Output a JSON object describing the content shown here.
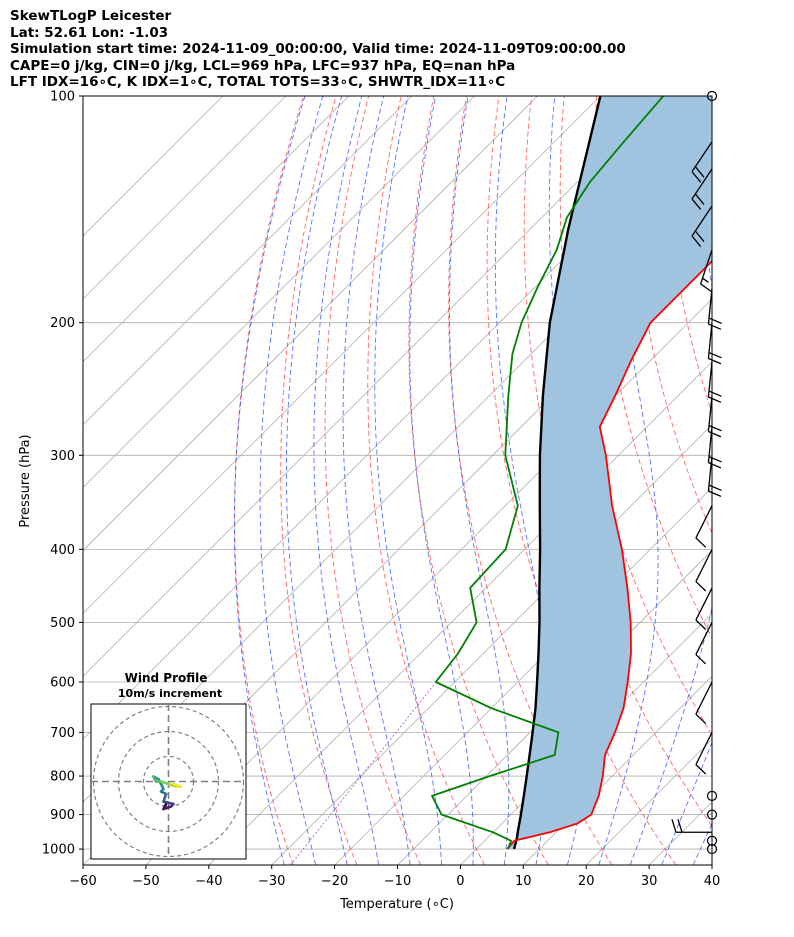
{
  "title_lines": [
    "SkewTLogP Leicester",
    "Lat: 52.61   Lon: -1.03",
    "Simulation start time: 2024-11-09_00:00:00, Valid time: 2024-11-09T09:00:00.00",
    "CAPE=0 j/kg, CIN=0 j/kg, LCL=969 hPa, LFC=937 hPa, EQ=nan hPa",
    "LFT IDX=16∘C, K IDX=1∘C, TOTAL TOTS=33∘C, SHWTR_IDX=11∘C"
  ],
  "chart_data": {
    "type": "skewt-logp",
    "xlabel": "Temperature (∘C)",
    "ylabel": "Pressure (hPa)",
    "xlim": [
      -60,
      40
    ],
    "ylim": [
      1050,
      100
    ],
    "x_ticks": [
      -60,
      -50,
      -40,
      -30,
      -20,
      -10,
      0,
      10,
      20,
      30,
      40
    ],
    "y_ticks": [
      1000,
      900,
      800,
      700,
      600,
      500,
      400,
      300,
      200,
      100
    ],
    "grid": true,
    "shaded_region_color": "#a0c4df",
    "temperature": {
      "color": "#ff0000",
      "points": [
        [
          1000,
          4.9
        ],
        [
          975,
          4.7
        ],
        [
          950,
          9.0
        ],
        [
          925,
          12.0
        ],
        [
          900,
          12.8
        ],
        [
          850,
          11.0
        ],
        [
          800,
          8.5
        ],
        [
          750,
          5.5
        ],
        [
          700,
          3.5
        ],
        [
          650,
          1.0
        ],
        [
          600,
          -2.5
        ],
        [
          550,
          -6.5
        ],
        [
          500,
          -11.5
        ],
        [
          450,
          -17.5
        ],
        [
          400,
          -24.5
        ],
        [
          350,
          -33.0
        ],
        [
          300,
          -42.0
        ],
        [
          275,
          -47.5
        ],
        [
          250,
          -50.0
        ],
        [
          225,
          -53.0
        ],
        [
          200,
          -56.0
        ],
        [
          180,
          -56.0
        ],
        [
          160,
          -56.0
        ],
        [
          140,
          -57.0
        ],
        [
          120,
          -59.0
        ],
        [
          100,
          -62.0
        ]
      ]
    },
    "dewpoint": {
      "color": "#008000",
      "points": [
        [
          1000,
          5.0
        ],
        [
          975,
          4.2
        ],
        [
          950,
          0.0
        ],
        [
          900,
          -11.0
        ],
        [
          850,
          -15.5
        ],
        [
          800,
          -9.5
        ],
        [
          750,
          -2.5
        ],
        [
          700,
          -5.5
        ],
        [
          650,
          -20.0
        ],
        [
          600,
          -33.0
        ],
        [
          550,
          -34.0
        ],
        [
          500,
          -36.0
        ],
        [
          450,
          -42.5
        ],
        [
          400,
          -43.0
        ],
        [
          350,
          -48.0
        ],
        [
          300,
          -58.0
        ],
        [
          250,
          -67.0
        ],
        [
          220,
          -73.0
        ],
        [
          200,
          -76.5
        ],
        [
          180,
          -79.5
        ],
        [
          160,
          -82.5
        ],
        [
          145,
          -86.0
        ],
        [
          130,
          -88.0
        ],
        [
          115,
          -89.0
        ],
        [
          100,
          -90.0
        ]
      ]
    },
    "parcel_profile": {
      "color": "#000000",
      "points": [
        [
          1000,
          6.0
        ],
        [
          969,
          4.8
        ],
        [
          950,
          3.9
        ],
        [
          900,
          1.6
        ],
        [
          850,
          -0.9
        ],
        [
          800,
          -3.6
        ],
        [
          750,
          -6.5
        ],
        [
          700,
          -9.6
        ],
        [
          650,
          -13.0
        ],
        [
          600,
          -16.9
        ],
        [
          550,
          -21.2
        ],
        [
          500,
          -26.0
        ],
        [
          450,
          -31.5
        ],
        [
          400,
          -37.5
        ],
        [
          350,
          -44.5
        ],
        [
          300,
          -52.5
        ],
        [
          250,
          -61.5
        ],
        [
          200,
          -72.0
        ],
        [
          150,
          -84.0
        ],
        [
          100,
          -100.0
        ]
      ]
    },
    "wind_barbs": [
      {
        "pressure": 1000,
        "kind": "calm"
      },
      {
        "pressure": 975,
        "kind": "calm"
      },
      {
        "pressure": 950,
        "u": 22,
        "v": 0
      },
      {
        "pressure": 900,
        "kind": "calm"
      },
      {
        "pressure": 850,
        "kind": "calm"
      },
      {
        "pressure": 700,
        "u": 5,
        "v": 10
      },
      {
        "pressure": 600,
        "u": 5,
        "v": 10
      },
      {
        "pressure": 500,
        "u": 5,
        "v": 10
      },
      {
        "pressure": 450,
        "u": 5,
        "v": 10
      },
      {
        "pressure": 400,
        "u": 5,
        "v": 10
      },
      {
        "pressure": 350,
        "u": 5,
        "v": 10
      },
      {
        "pressure": 300,
        "u": 2,
        "v": 20
      },
      {
        "pressure": 275,
        "u": 2,
        "v": 20
      },
      {
        "pressure": 250,
        "u": 2,
        "v": 20
      },
      {
        "pressure": 225,
        "u": 2,
        "v": 20
      },
      {
        "pressure": 200,
        "u": 2,
        "v": 20
      },
      {
        "pressure": 180,
        "u": 2,
        "v": 20
      },
      {
        "pressure": 160,
        "u": 5,
        "v": 15
      },
      {
        "pressure": 140,
        "u": 10,
        "v": 15
      },
      {
        "pressure": 125,
        "u": 10,
        "v": 15
      },
      {
        "pressure": 115,
        "u": 10,
        "v": 15
      },
      {
        "pressure": 100,
        "kind": "calm"
      }
    ],
    "hodograph": {
      "title": "Wind Profile",
      "subtitle": "10m/s increment",
      "rings": [
        10,
        20,
        30
      ],
      "colormap": [
        "#440154",
        "#3b528b",
        "#21918c",
        "#5ec962",
        "#fde725"
      ],
      "points": [
        [
          -1,
          -9
        ],
        [
          -2,
          -11
        ],
        [
          1,
          -10
        ],
        [
          2,
          -9
        ],
        [
          -2,
          -8
        ],
        [
          -1,
          -5
        ],
        [
          -3,
          -4
        ],
        [
          -2,
          -3
        ],
        [
          -4,
          1
        ],
        [
          -6,
          2
        ],
        [
          -5,
          0
        ],
        [
          -3,
          0
        ],
        [
          0,
          -1
        ],
        [
          3,
          -2
        ],
        [
          5,
          -2
        ],
        [
          2,
          -1
        ]
      ]
    }
  }
}
